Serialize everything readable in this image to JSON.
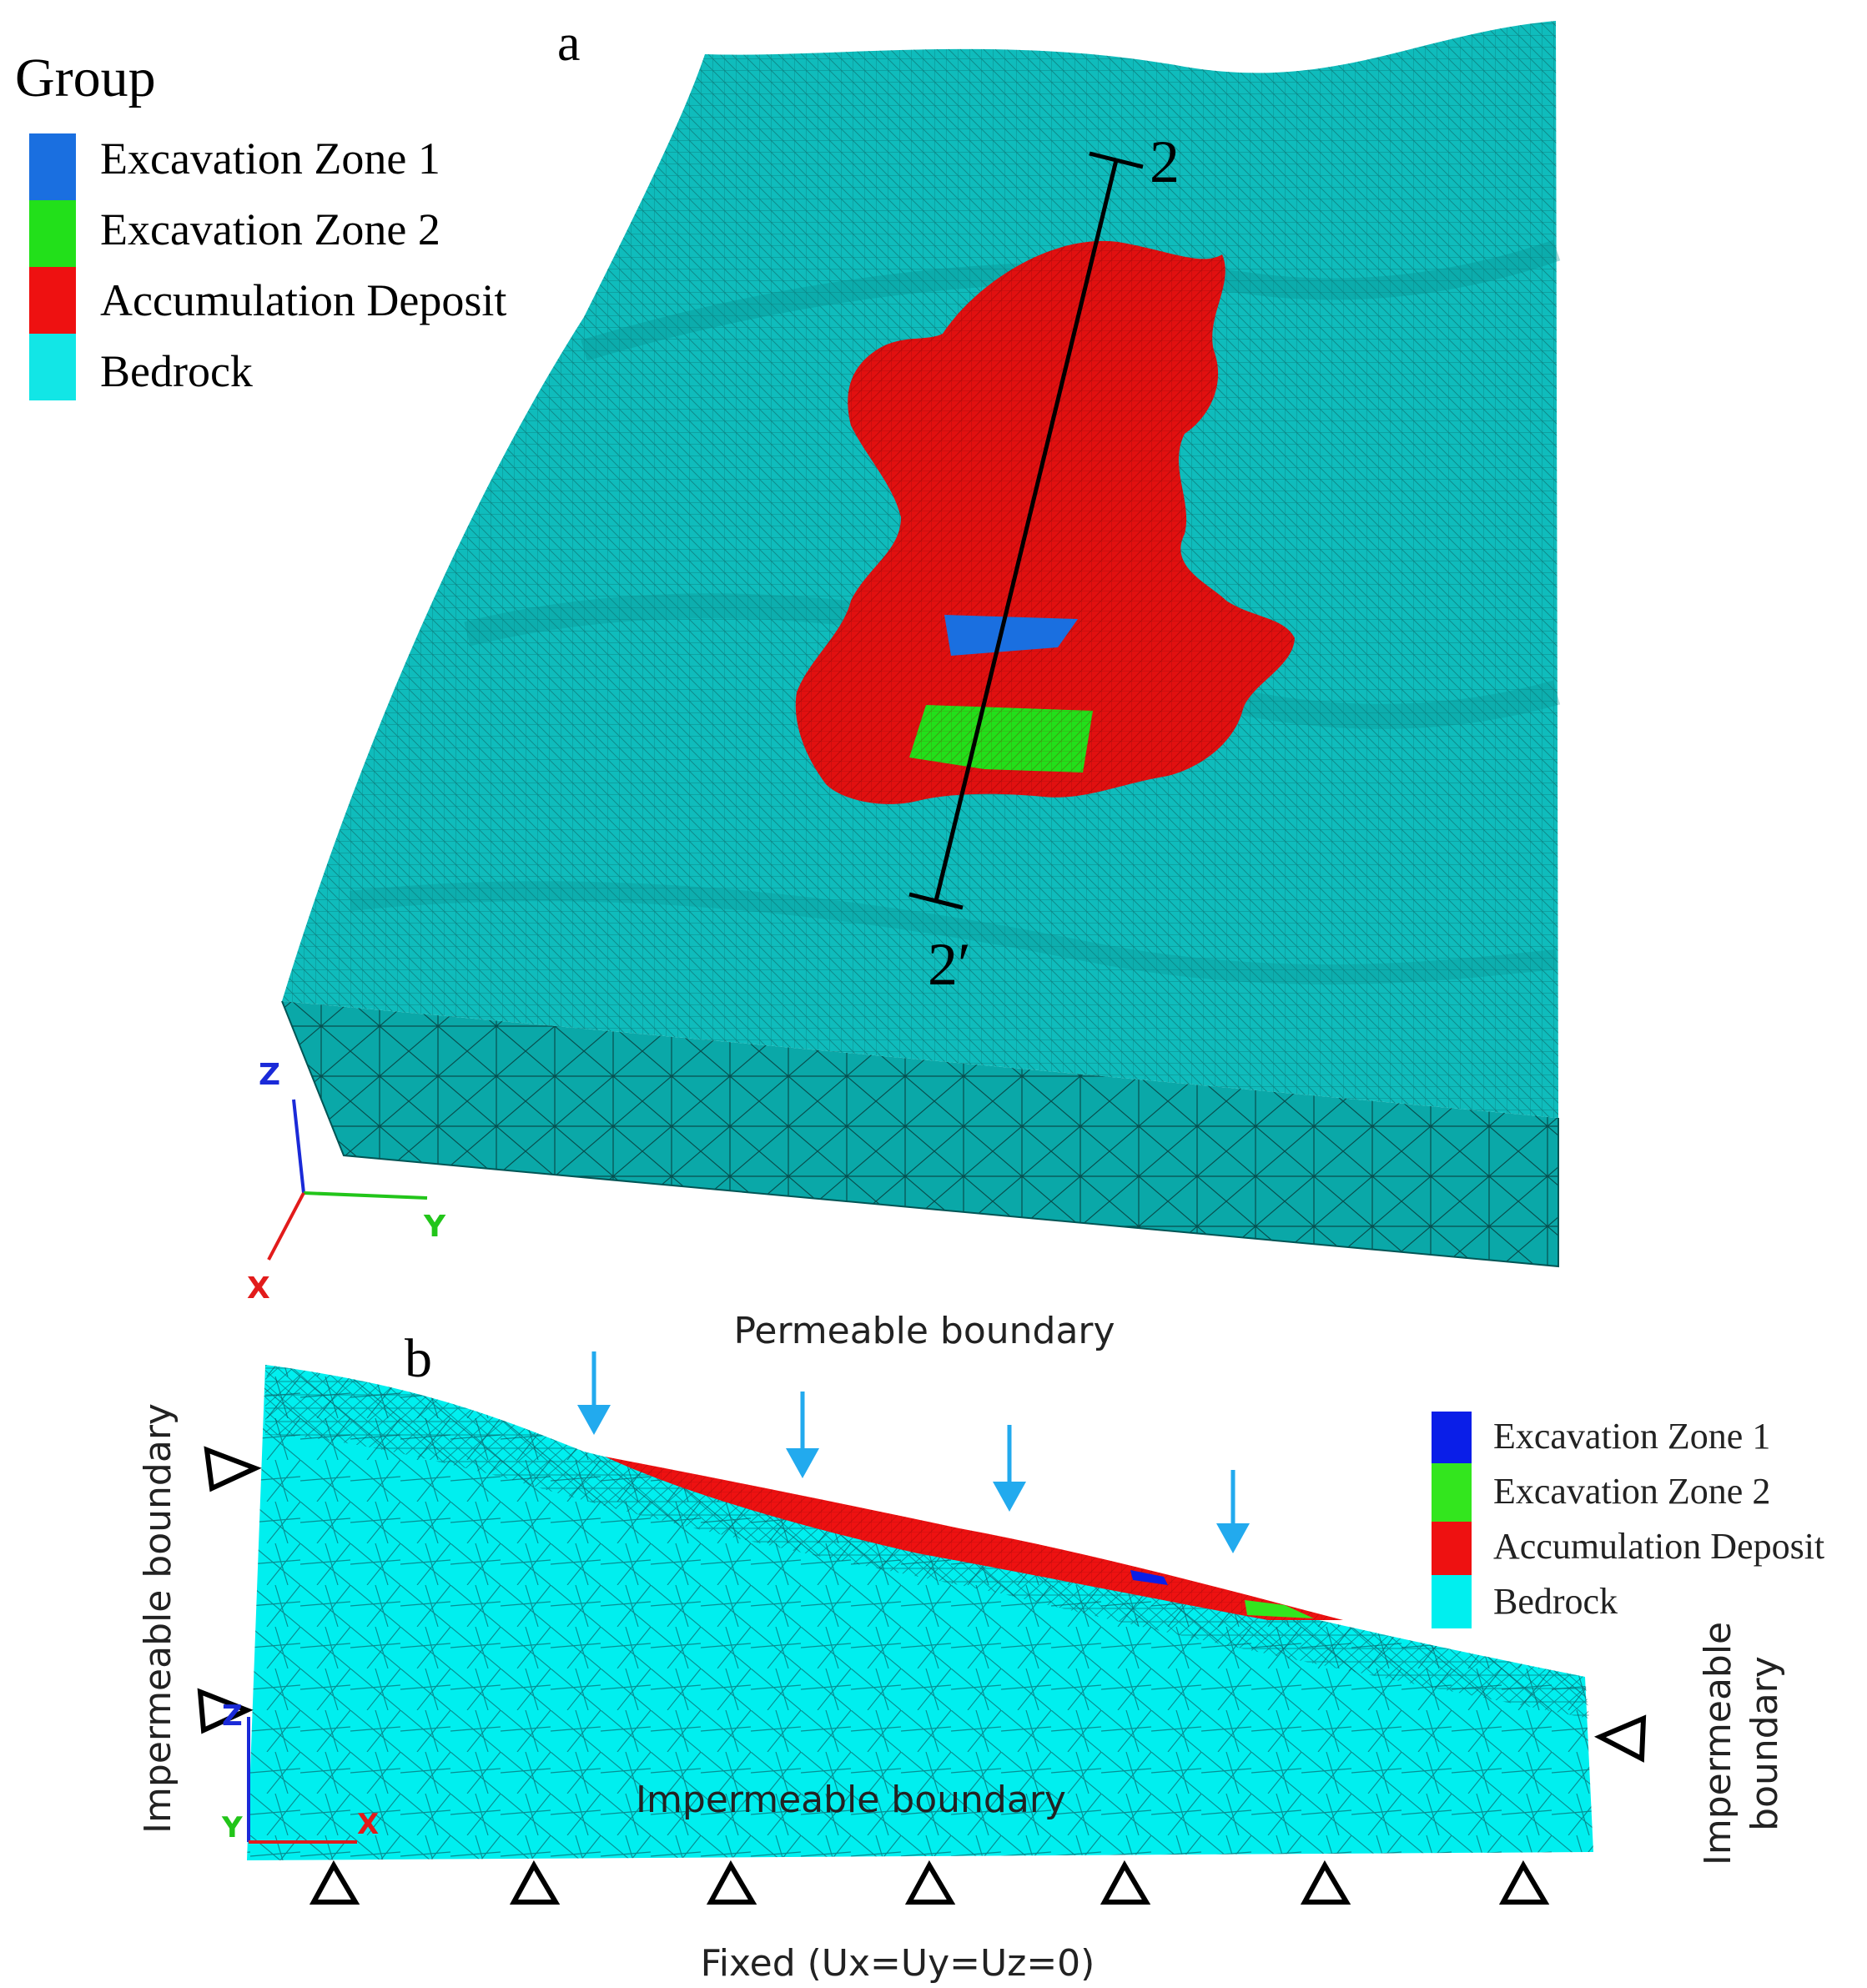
{
  "panel_a": {
    "label": "a",
    "legend": {
      "title": "Group",
      "items": [
        {
          "label": "Excavation Zone 1",
          "color": "#1a6fe0"
        },
        {
          "label": "Excavation Zone 2",
          "color": "#22e01a"
        },
        {
          "label": "Accumulation Deposit",
          "color": "#ee1111"
        },
        {
          "label": "Bedrock",
          "color": "#12e6e6"
        }
      ]
    },
    "section_start": "2",
    "section_end": "2′",
    "axes": {
      "z": "Z",
      "y": "Y",
      "x": "X"
    },
    "colors": {
      "surface": "#0fbcbc",
      "side": "#0aa8a8"
    }
  },
  "panel_b": {
    "label": "b",
    "top_label": "Permeable boundary",
    "left_label": "Impermeable boundary",
    "right_label": [
      "Impermeable",
      "boundary"
    ],
    "bottom_inner_label": "Impermeable boundary",
    "fixed_label": "Fixed (Ux=Uy=Uz=0)",
    "legend": {
      "items": [
        {
          "label": "Excavation Zone 1",
          "color": "#0a1ee8"
        },
        {
          "label": "Excavation Zone 2",
          "color": "#33e61e"
        },
        {
          "label": "Accumulation Deposit",
          "color": "#ee1111"
        },
        {
          "label": "Bedrock",
          "color": "#00efef"
        }
      ]
    },
    "axes": {
      "z": "Z",
      "y": "Y",
      "x": "X"
    },
    "arrow_color": "#22aaee"
  }
}
